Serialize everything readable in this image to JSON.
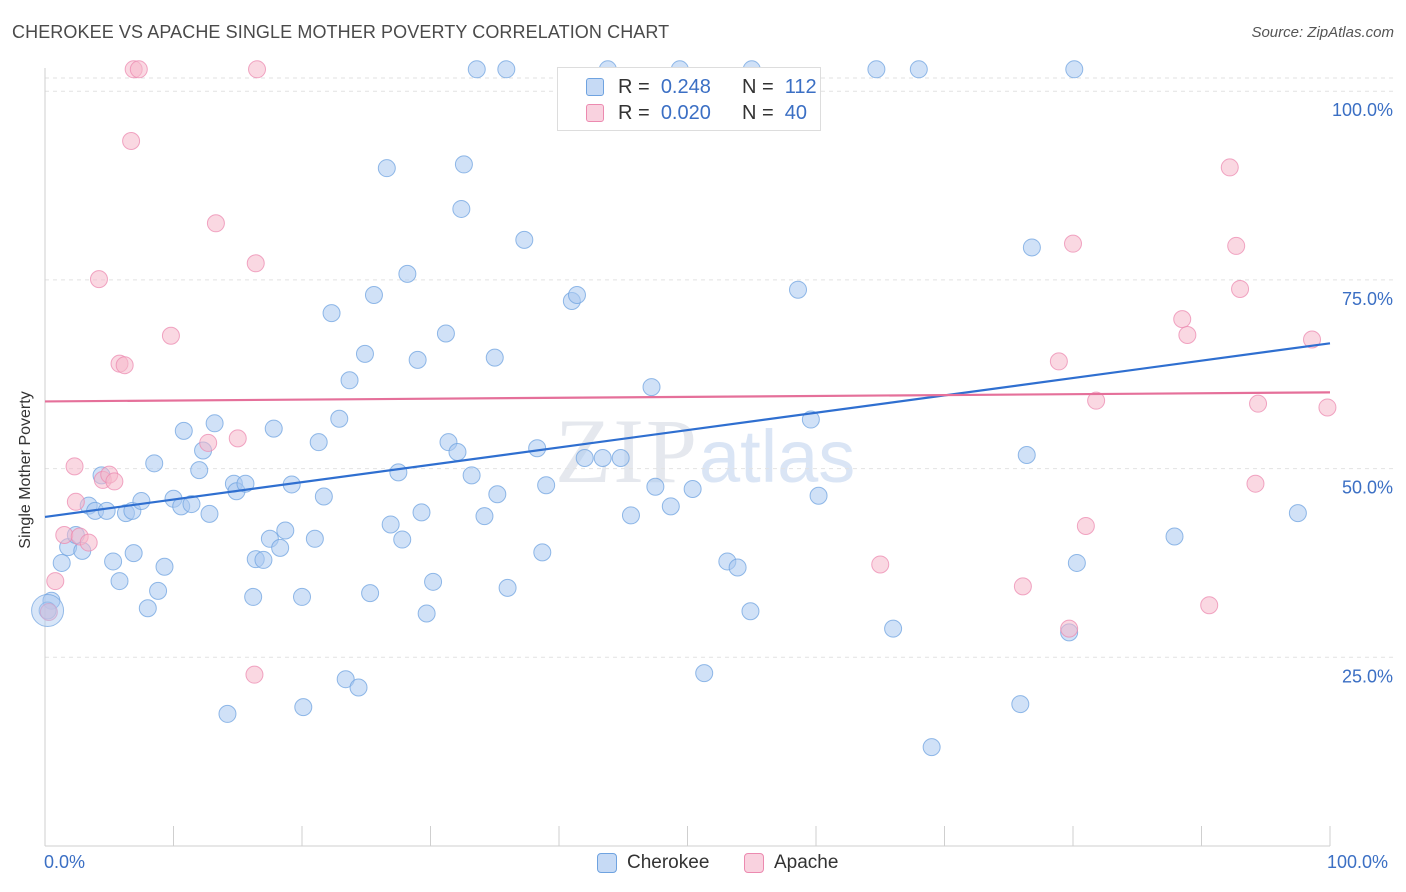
{
  "title": "CHEROKEE VS APACHE SINGLE MOTHER POVERTY CORRELATION CHART",
  "source": "Source: ZipAtlas.com",
  "watermark": {
    "zip": "ZIP",
    "atlas": "atlas"
  },
  "legend_top": [
    {
      "r_label": "R =",
      "r_value": "0.248",
      "n_label": "N =",
      "n_value": "112",
      "color": "#a9c8f0"
    },
    {
      "r_label": "R =",
      "r_value": "0.020",
      "n_label": "N =",
      "n_value": "40",
      "color": "#f5b8cb"
    }
  ],
  "legend_bottom": [
    {
      "label": "Cherokee",
      "color": "#a9c8f0"
    },
    {
      "label": "Apache",
      "color": "#f5b8cb"
    }
  ],
  "x_tick_labels": {
    "left": "0.0%",
    "right": "100.0%"
  },
  "chart_data": {
    "type": "scatter",
    "title": "CHEROKEE VS APACHE SINGLE MOTHER POVERTY CORRELATION CHART",
    "xlabel": "",
    "ylabel": "Single Mother Poverty",
    "xlim": [
      0,
      100
    ],
    "ylim": [
      0,
      104
    ],
    "y_ticks": [
      25,
      50,
      75,
      100
    ],
    "y_tick_labels": [
      "25.0%",
      "50.0%",
      "75.0%",
      "100.0%"
    ],
    "grid": true,
    "legend_position": "top-center",
    "series": [
      {
        "name": "Cherokee",
        "color": "#6fa3e0",
        "fill": "#a9c8f0",
        "trend": {
          "x": [
            0,
            100
          ],
          "y": [
            43.6,
            66.6
          ]
        },
        "points": [
          [
            0.5,
            32.5
          ],
          [
            1.3,
            37.5
          ],
          [
            1.8,
            39.6
          ],
          [
            2.4,
            41.2
          ],
          [
            2.9,
            39.1
          ],
          [
            3.4,
            45.1
          ],
          [
            3.9,
            44.4
          ],
          [
            4.4,
            49.1
          ],
          [
            4.8,
            44.4
          ],
          [
            5.3,
            37.7
          ],
          [
            5.8,
            35.1
          ],
          [
            6.3,
            44.1
          ],
          [
            6.8,
            44.4
          ],
          [
            6.9,
            38.8
          ],
          [
            7.5,
            45.7
          ],
          [
            8.0,
            31.5
          ],
          [
            8.5,
            50.7
          ],
          [
            8.8,
            33.8
          ],
          [
            9.3,
            37.0
          ],
          [
            10.0,
            46.0
          ],
          [
            10.6,
            45.0
          ],
          [
            10.8,
            55.0
          ],
          [
            11.4,
            45.3
          ],
          [
            12.0,
            49.8
          ],
          [
            12.3,
            52.4
          ],
          [
            12.8,
            44.0
          ],
          [
            13.2,
            56.0
          ],
          [
            14.2,
            17.5
          ],
          [
            14.7,
            48.0
          ],
          [
            14.9,
            47.0
          ],
          [
            15.6,
            48.0
          ],
          [
            16.2,
            33.0
          ],
          [
            16.4,
            38.0
          ],
          [
            17.0,
            37.9
          ],
          [
            17.5,
            40.7
          ],
          [
            17.8,
            55.3
          ],
          [
            18.3,
            39.5
          ],
          [
            18.7,
            41.8
          ],
          [
            19.2,
            47.9
          ],
          [
            20.0,
            33.0
          ],
          [
            20.1,
            18.4
          ],
          [
            21.0,
            40.7
          ],
          [
            21.3,
            53.5
          ],
          [
            21.7,
            46.3
          ],
          [
            22.3,
            70.6
          ],
          [
            22.9,
            56.6
          ],
          [
            23.4,
            22.1
          ],
          [
            23.7,
            61.7
          ],
          [
            24.4,
            21.0
          ],
          [
            24.9,
            65.2
          ],
          [
            25.3,
            33.5
          ],
          [
            25.6,
            73.0
          ],
          [
            26.6,
            89.8
          ],
          [
            26.9,
            42.6
          ],
          [
            27.5,
            49.5
          ],
          [
            27.8,
            40.6
          ],
          [
            28.2,
            75.8
          ],
          [
            29.0,
            64.4
          ],
          [
            29.3,
            44.2
          ],
          [
            29.7,
            30.8
          ],
          [
            30.2,
            35.0
          ],
          [
            31.2,
            67.9
          ],
          [
            31.4,
            53.5
          ],
          [
            32.1,
            52.2
          ],
          [
            32.4,
            84.4
          ],
          [
            32.6,
            90.3
          ],
          [
            33.2,
            49.1
          ],
          [
            33.6,
            102.9
          ],
          [
            34.2,
            43.7
          ],
          [
            35.0,
            64.7
          ],
          [
            35.2,
            46.6
          ],
          [
            35.9,
            102.9
          ],
          [
            36.0,
            34.2
          ],
          [
            37.3,
            80.3
          ],
          [
            38.3,
            52.7
          ],
          [
            38.7,
            38.9
          ],
          [
            39.0,
            47.8
          ],
          [
            41.0,
            72.2
          ],
          [
            41.4,
            73.0
          ],
          [
            42.0,
            51.4
          ],
          [
            43.4,
            51.4
          ],
          [
            43.8,
            102.9
          ],
          [
            44.8,
            51.4
          ],
          [
            45.6,
            43.8
          ],
          [
            47.2,
            60.8
          ],
          [
            47.5,
            47.6
          ],
          [
            48.7,
            45.0
          ],
          [
            49.4,
            102.9
          ],
          [
            50.4,
            47.3
          ],
          [
            51.3,
            22.9
          ],
          [
            53.1,
            37.7
          ],
          [
            53.9,
            36.9
          ],
          [
            54.9,
            31.1
          ],
          [
            55.0,
            102.9
          ],
          [
            58.6,
            73.7
          ],
          [
            59.6,
            56.5
          ],
          [
            60.2,
            46.4
          ],
          [
            64.7,
            102.9
          ],
          [
            66.0,
            28.8
          ],
          [
            68.0,
            102.9
          ],
          [
            69.0,
            13.1
          ],
          [
            75.9,
            18.8
          ],
          [
            76.4,
            51.8
          ],
          [
            76.8,
            79.3
          ],
          [
            79.7,
            28.3
          ],
          [
            80.1,
            102.9
          ],
          [
            80.3,
            37.5
          ],
          [
            87.9,
            41.0
          ],
          [
            97.5,
            44.1
          ],
          [
            0.2,
            31.2
          ]
        ]
      },
      {
        "name": "Apache",
        "color": "#ec8ab0",
        "fill": "#f5b8cb",
        "trend": {
          "x": [
            0,
            100
          ],
          "y": [
            58.9,
            60.1
          ]
        },
        "points": [
          [
            0.3,
            31.0
          ],
          [
            0.8,
            35.1
          ],
          [
            1.5,
            41.2
          ],
          [
            2.4,
            45.6
          ],
          [
            2.3,
            50.3
          ],
          [
            2.7,
            41.0
          ],
          [
            3.4,
            40.2
          ],
          [
            4.2,
            75.1
          ],
          [
            4.5,
            48.5
          ],
          [
            5.0,
            49.2
          ],
          [
            5.4,
            48.3
          ],
          [
            5.8,
            63.9
          ],
          [
            6.2,
            63.7
          ],
          [
            6.7,
            93.4
          ],
          [
            6.9,
            102.9
          ],
          [
            7.3,
            102.9
          ],
          [
            9.8,
            67.6
          ],
          [
            12.7,
            53.4
          ],
          [
            13.3,
            82.5
          ],
          [
            15.0,
            54.0
          ],
          [
            16.4,
            77.2
          ],
          [
            16.5,
            102.9
          ],
          [
            16.3,
            22.7
          ],
          [
            65.0,
            37.3
          ],
          [
            76.1,
            34.4
          ],
          [
            79.7,
            28.8
          ],
          [
            78.9,
            64.2
          ],
          [
            80.0,
            79.8
          ],
          [
            81.0,
            42.4
          ],
          [
            81.8,
            59.0
          ],
          [
            88.5,
            69.8
          ],
          [
            88.9,
            67.7
          ],
          [
            90.6,
            31.9
          ],
          [
            92.2,
            89.9
          ],
          [
            92.7,
            79.5
          ],
          [
            93.0,
            73.8
          ],
          [
            94.4,
            58.6
          ],
          [
            94.2,
            48.0
          ],
          [
            98.6,
            67.1
          ],
          [
            99.8,
            58.1
          ]
        ]
      }
    ]
  }
}
